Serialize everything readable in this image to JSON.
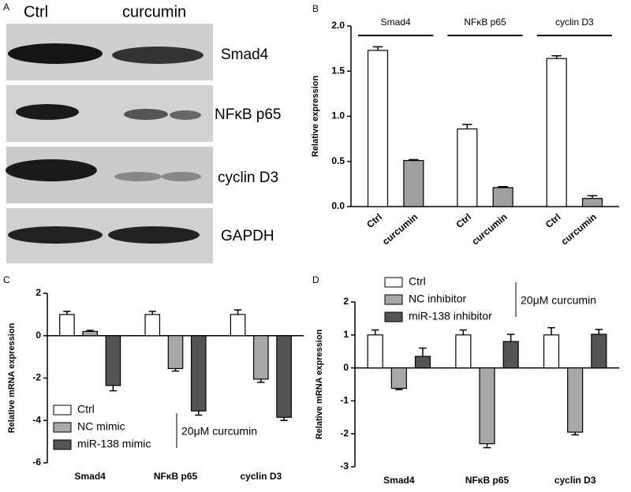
{
  "panel_labels": [
    "A",
    "B",
    "C",
    "D"
  ],
  "blot": {
    "lanes": [
      "Ctrl",
      "curcumin"
    ],
    "bands": [
      "Smad4",
      "NFκB p65",
      "cyclin D3",
      "GAPDH"
    ]
  },
  "chart_data": [
    {
      "type": "bar",
      "ylabel": "Relative expression",
      "groups": [
        "Smad4",
        "NFκB p65",
        "cyclin D3"
      ],
      "ylim": [
        0,
        2.0
      ],
      "yticks": [
        {
          "value": 0,
          "label": "0.0"
        },
        {
          "value": 0.5,
          "label": "0.5"
        },
        {
          "value": 1.0,
          "label": "1.0"
        },
        {
          "value": 1.5,
          "label": "1.5"
        },
        {
          "value": 2.0,
          "label": "2.0"
        }
      ],
      "series": [
        {
          "name": "Ctrl",
          "color": "#ffffff",
          "values": [
            1.73,
            0.86,
            1.64
          ],
          "errors": [
            0.04,
            0.05,
            0.03
          ]
        },
        {
          "name": "curcumin",
          "color": "#a0a0a0",
          "values": [
            0.51,
            0.21,
            0.09
          ],
          "errors": [
            0.01,
            0.01,
            0.03
          ]
        }
      ]
    },
    {
      "type": "bar",
      "ylabel": "Relative mRNA expression",
      "categories": [
        "Smad4",
        "NFκB p65",
        "cyclin D3"
      ],
      "ylim": [
        -6,
        2
      ],
      "yticks": [
        -6,
        -4,
        -2,
        0,
        2
      ],
      "legend": "lower left",
      "annotation": "20μM curcumin",
      "series": [
        {
          "name": "Ctrl",
          "color": "#ffffff",
          "values": [
            1.0,
            1.0,
            1.0
          ],
          "errors": [
            0.15,
            0.15,
            0.22
          ]
        },
        {
          "name": "NC mimic",
          "color": "#a8a8a8",
          "values": [
            0.2,
            -1.55,
            -2.05
          ],
          "errors": [
            0.05,
            0.12,
            0.15
          ]
        },
        {
          "name": "miR-138 mimic",
          "color": "#555555",
          "values": [
            -2.35,
            -3.55,
            -3.85
          ],
          "errors": [
            0.25,
            0.2,
            0.15
          ]
        }
      ]
    },
    {
      "type": "bar",
      "ylabel": "Relative mRNA expression",
      "categories": [
        "Smad4",
        "NFκB p65",
        "cyclin D3"
      ],
      "ylim": [
        -3,
        2
      ],
      "yticks": [
        -3,
        -2,
        -1,
        0,
        1,
        2
      ],
      "legend": "upper left",
      "annotation": "20μM curcumin",
      "series": [
        {
          "name": "Ctrl",
          "color": "#ffffff",
          "values": [
            1.0,
            1.0,
            1.0
          ],
          "errors": [
            0.15,
            0.15,
            0.22
          ]
        },
        {
          "name": "NC inhibitor",
          "color": "#a8a8a8",
          "values": [
            -0.62,
            -2.3,
            -1.95
          ],
          "errors": [
            0.04,
            0.12,
            0.08
          ]
        },
        {
          "name": "miR-138 inhibitor",
          "color": "#555555",
          "values": [
            0.35,
            0.8,
            1.02
          ],
          "errors": [
            0.25,
            0.22,
            0.15
          ]
        }
      ]
    }
  ]
}
